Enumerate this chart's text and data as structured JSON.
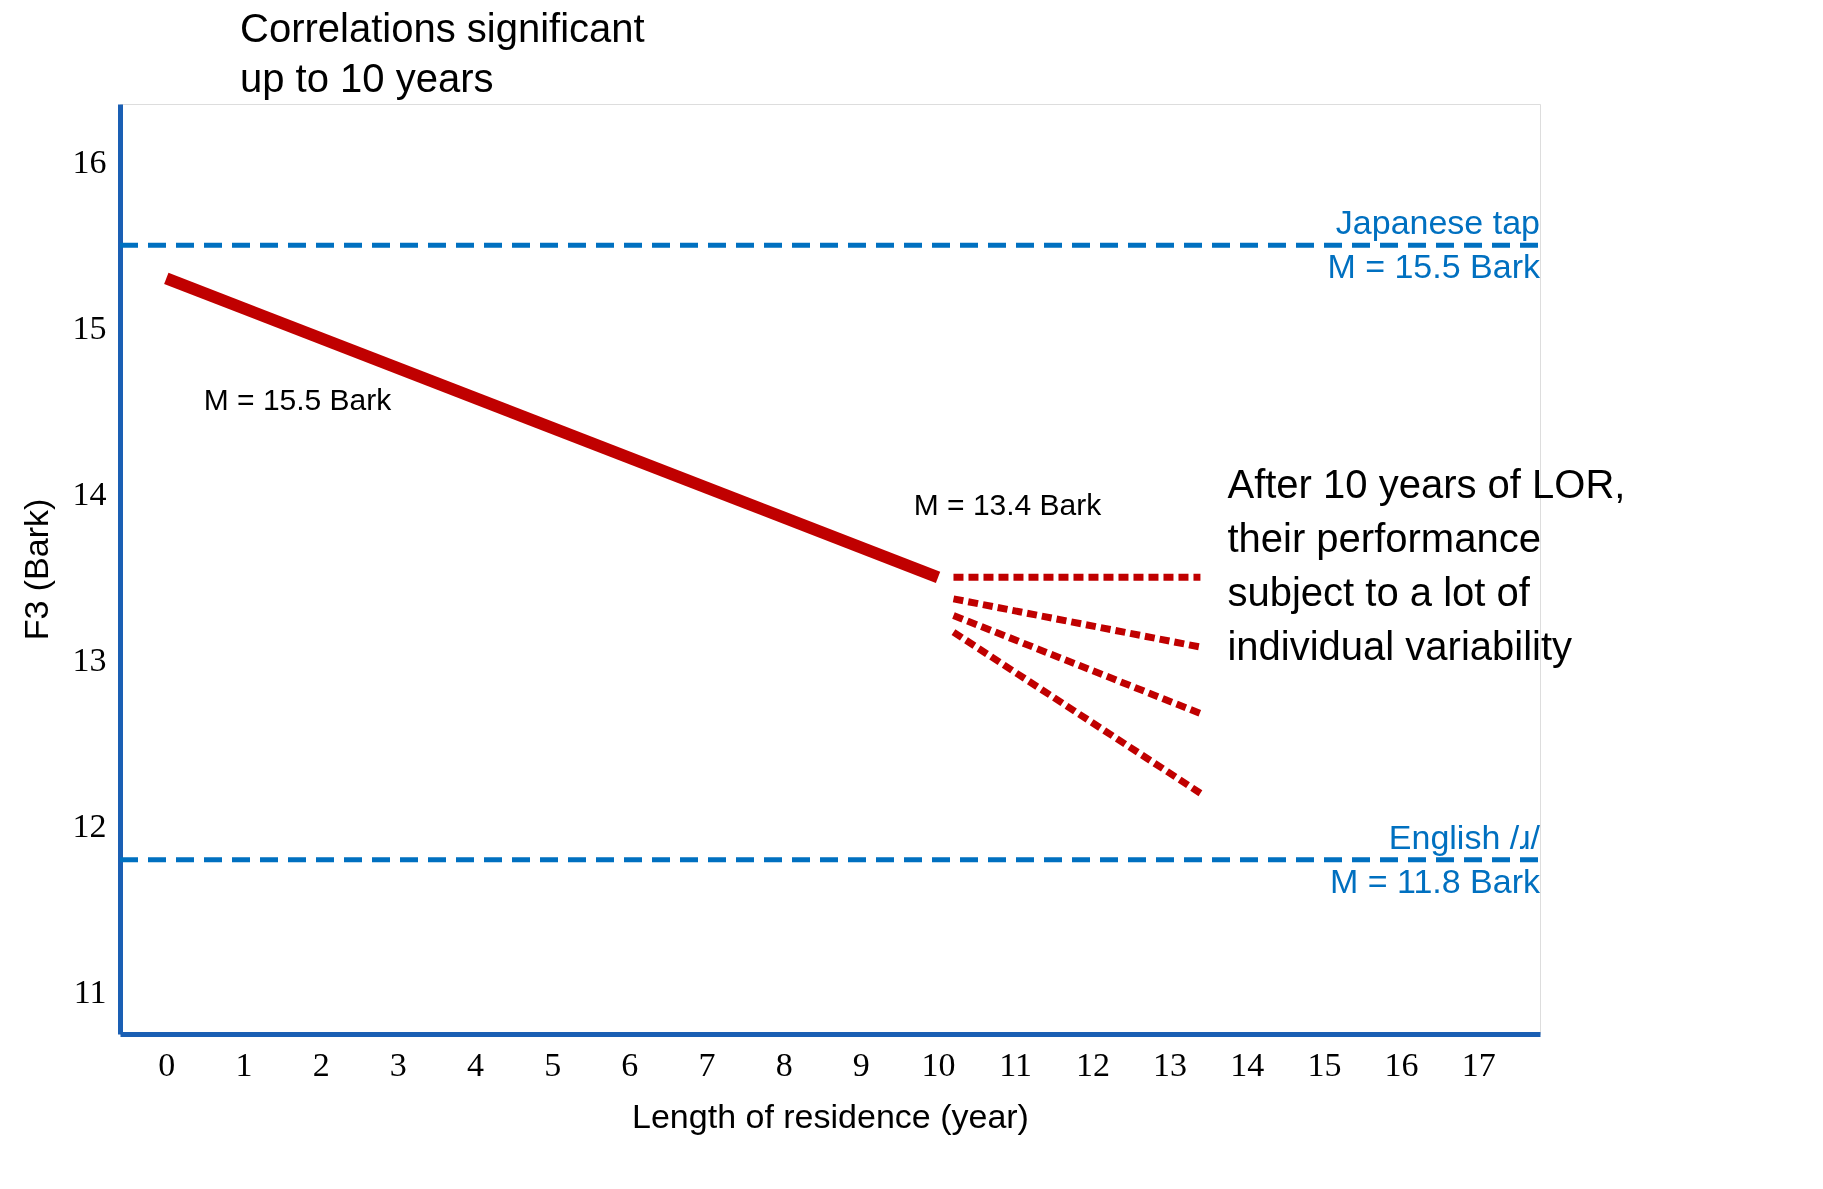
{
  "chart_data": {
    "type": "line",
    "title": "Correlations significant\nup to 10 years",
    "xlabel": "Length of residence (year)",
    "ylabel": "F3 (Bark)",
    "xlim": [
      -0.6,
      17.8
    ],
    "ylim": [
      10.75,
      16.35
    ],
    "xticks": [
      0,
      1,
      2,
      3,
      4,
      5,
      6,
      7,
      8,
      9,
      10,
      11,
      12,
      13,
      14,
      15,
      16,
      17
    ],
    "yticks": [
      11,
      12,
      13,
      14,
      15,
      16
    ],
    "grid": false,
    "marker": "none",
    "series": [
      {
        "color": "#c00000",
        "x": [
          0,
          10
        ],
        "values": [
          15.3,
          13.5
        ],
        "line_style": "solid"
      },
      {
        "color": "#c00000",
        "x": [
          10.2,
          13.4
        ],
        "values": [
          13.5,
          13.5
        ],
        "line_style": "dashed"
      },
      {
        "color": "#c00000",
        "x": [
          10.2,
          13.4
        ],
        "values": [
          13.37,
          13.08
        ],
        "line_style": "dashed"
      },
      {
        "color": "#c00000",
        "x": [
          10.2,
          13.4
        ],
        "values": [
          13.27,
          12.68
        ],
        "line_style": "dashed"
      },
      {
        "color": "#c00000",
        "x": [
          10.2,
          13.4
        ],
        "values": [
          13.17,
          12.2
        ],
        "line_style": "dashed"
      }
    ],
    "ref_lines": [
      {
        "axis": "y",
        "value": 15.5,
        "label": "Japanese tap\nM = 15.5 Bark",
        "color": "#0070c0",
        "line_style": "dashed"
      },
      {
        "axis": "y",
        "value": 11.8,
        "label": "English /ɹ/\nM = 11.8 Bark",
        "color": "#0070c0",
        "line_style": "dashed"
      }
    ],
    "annotations": [
      "M = 15.5 Bark",
      "M = 13.4 Bark",
      "After 10 years of LOR,\ntheir performance\nsubject to a lot of\nindividual variability"
    ]
  }
}
